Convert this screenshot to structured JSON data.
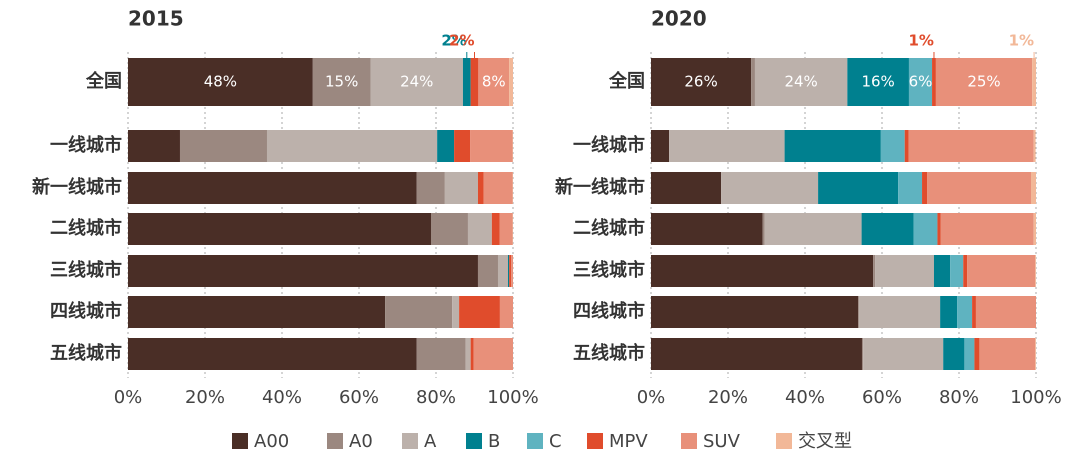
{
  "chart_data": [
    {
      "type": "stacked-barh",
      "title": "2015",
      "categories": [
        "全国",
        "一线城市",
        "新一线城市",
        "二线城市",
        "三线城市",
        "四线城市",
        "五线城市"
      ],
      "series": [
        {
          "name": "A00",
          "color": "#4a2e26",
          "values": [
            48,
            13.5,
            75,
            78.7,
            90.9,
            66.8,
            75
          ],
          "value_labels": [
            "48%",
            null,
            null,
            null,
            null,
            null,
            null
          ]
        },
        {
          "name": "A0",
          "color": "#9b8880",
          "values": [
            15,
            22.6,
            7.3,
            9.6,
            5.2,
            17.4,
            12.7
          ],
          "value_labels": [
            "15%",
            null,
            null,
            null,
            null,
            null,
            null
          ]
        },
        {
          "name": "A",
          "color": "#bcb1ab",
          "values": [
            24,
            44.2,
            8.6,
            6.2,
            2.6,
            1.8,
            1.3
          ],
          "value_labels": [
            "24%",
            null,
            null,
            null,
            null,
            null,
            null
          ]
        },
        {
          "name": "B",
          "color": "#00808f",
          "values": [
            2,
            4.4,
            0,
            0,
            0.3,
            0,
            0
          ],
          "value_labels": [
            "2%",
            null,
            null,
            null,
            null,
            null,
            null
          ]
        },
        {
          "name": "C",
          "color": "#5fb3c0",
          "values": [
            0,
            0,
            0,
            0,
            0,
            0,
            0
          ]
        },
        {
          "name": "MPV",
          "color": "#e04c2c",
          "values": [
            2,
            4.2,
            1.5,
            2,
            0.5,
            10.6,
            0.8
          ],
          "value_labels": [
            "2%",
            null,
            null,
            null,
            null,
            null,
            null
          ]
        },
        {
          "name": "SUV",
          "color": "#e8907a",
          "values": [
            8,
            11,
            7.5,
            3.4,
            0.5,
            3.4,
            10.2
          ],
          "value_labels": [
            "8%",
            null,
            null,
            null,
            null,
            null,
            null
          ]
        },
        {
          "name": "交叉型",
          "color": "#f2b898",
          "values": [
            1,
            0.1,
            0.1,
            0.1,
            0,
            0,
            0
          ]
        }
      ],
      "xlim": [
        0,
        100
      ],
      "xticks": [
        {
          "value": 0,
          "label": "0%"
        },
        {
          "value": 20,
          "label": "20%"
        },
        {
          "value": 40,
          "label": "40%"
        },
        {
          "value": 60,
          "label": "60%"
        },
        {
          "value": 80,
          "label": "80%"
        },
        {
          "value": 100,
          "label": "100%"
        }
      ],
      "grid": true
    },
    {
      "type": "stacked-barh",
      "title": "2020",
      "categories": [
        "全国",
        "一线城市",
        "新一线城市",
        "二线城市",
        "三线城市",
        "四线城市",
        "五线城市"
      ],
      "series": [
        {
          "name": "A00",
          "color": "#4a2e26",
          "values": [
            26,
            4.7,
            18.2,
            29,
            57.7,
            53.8,
            54.8
          ],
          "value_labels": [
            "26%",
            null,
            null,
            null,
            null,
            null,
            null
          ]
        },
        {
          "name": "A0",
          "color": "#9b8880",
          "values": [
            1,
            0,
            0,
            0.5,
            0.5,
            0.3,
            0.3
          ]
        },
        {
          "name": "A",
          "color": "#bcb1ab",
          "values": [
            24,
            30,
            25.2,
            25.2,
            15.3,
            21,
            20.8
          ],
          "value_labels": [
            "24%",
            null,
            null,
            null,
            null,
            null,
            null
          ]
        },
        {
          "name": "B",
          "color": "#00808f",
          "values": [
            16,
            25,
            20.8,
            13.5,
            4.2,
            4.4,
            5.5
          ],
          "value_labels": [
            "16%",
            null,
            null,
            null,
            null,
            null,
            null
          ]
        },
        {
          "name": "C",
          "color": "#5fb3c0",
          "values": [
            6,
            6.2,
            6.2,
            6.2,
            3.4,
            3.9,
            2.6
          ],
          "value_labels": [
            "6%",
            null,
            null,
            null,
            null,
            null,
            null
          ]
        },
        {
          "name": "MPV",
          "color": "#e04c2c",
          "values": [
            1,
            1,
            1.3,
            0.8,
            1,
            1,
            1.3
          ],
          "value_labels": [
            "1%",
            null,
            null,
            null,
            null,
            null,
            null
          ]
        },
        {
          "name": "SUV",
          "color": "#e8907a",
          "values": [
            25,
            32.5,
            27,
            24.2,
            17.7,
            15.6,
            14.5
          ],
          "value_labels": [
            "25%",
            null,
            null,
            null,
            null,
            null,
            null
          ]
        },
        {
          "name": "交叉型",
          "color": "#f2b898",
          "values": [
            1,
            0.5,
            1.3,
            0.6,
            0.2,
            0,
            0.2
          ],
          "value_labels": [
            "1%",
            null,
            null,
            null,
            null,
            null,
            null
          ]
        }
      ],
      "xlim": [
        0,
        100
      ],
      "xticks": [
        {
          "value": 0,
          "label": "0%"
        },
        {
          "value": 20,
          "label": "20%"
        },
        {
          "value": 40,
          "label": "40%"
        },
        {
          "value": 60,
          "label": "60%"
        },
        {
          "value": 80,
          "label": "80%"
        },
        {
          "value": 100,
          "label": "100%"
        }
      ],
      "grid": true
    }
  ]
}
